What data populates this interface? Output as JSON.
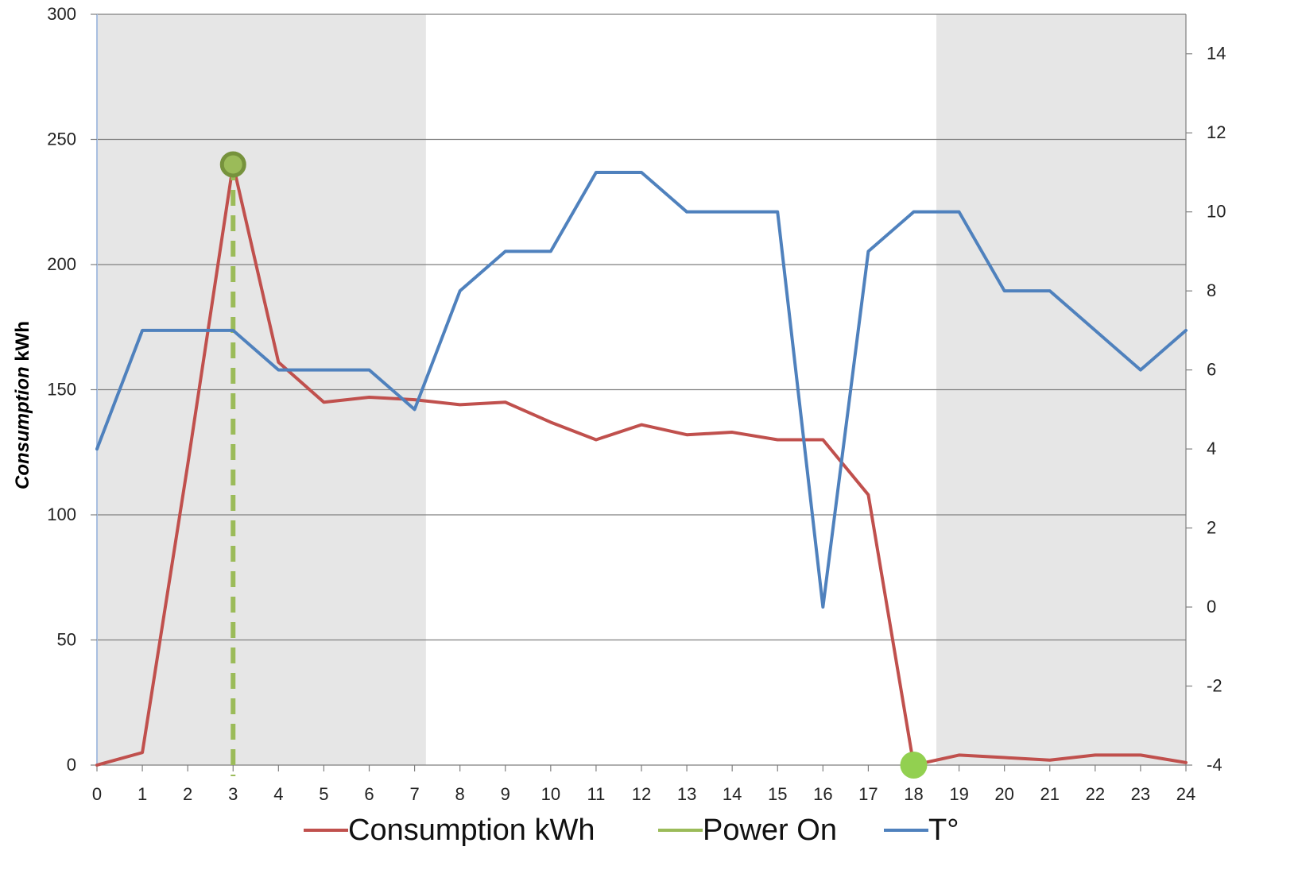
{
  "chart_data": {
    "type": "line",
    "ylabel_italic": "Consumption",
    "ylabel_rest": " kWh",
    "x": [
      0,
      1,
      2,
      3,
      4,
      5,
      6,
      7,
      8,
      9,
      10,
      11,
      12,
      13,
      14,
      15,
      16,
      17,
      18,
      19,
      20,
      21,
      22,
      23,
      24
    ],
    "xlim": [
      0,
      24
    ],
    "ylim": [
      0,
      300
    ],
    "y2lim": [
      -4,
      15
    ],
    "y_ticks": [
      0,
      50,
      100,
      150,
      200,
      250,
      300
    ],
    "y2_ticks": [
      -4,
      -2,
      0,
      2,
      4,
      6,
      8,
      10,
      12,
      14
    ],
    "grid": "horizontal",
    "legend_position": "bottom",
    "shaded_ranges": [
      [
        0,
        7.25
      ],
      [
        18.5,
        24
      ]
    ],
    "series": [
      {
        "name": "Consumption kWh",
        "axis": "left",
        "color": "#c0504d",
        "values": [
          0,
          5,
          120,
          240,
          161,
          145,
          147,
          146,
          144,
          145,
          137,
          130,
          136,
          132,
          133,
          130,
          130,
          108,
          0,
          4,
          3,
          2,
          4,
          4,
          1
        ]
      },
      {
        "name": "Power On",
        "axis": "left",
        "color": "#9bbb59",
        "dashed_line": {
          "x": 3,
          "from": 240,
          "to": 0
        },
        "markers": [
          {
            "x": 3,
            "y": 240,
            "style": "ring"
          },
          {
            "x": 18,
            "y": 0,
            "style": "filled"
          }
        ]
      },
      {
        "name": "T°",
        "axis": "right",
        "color": "#4f81bd",
        "values": [
          4,
          7,
          7,
          7,
          6,
          6,
          6,
          5,
          8,
          9,
          9,
          11,
          11,
          10,
          10,
          10,
          0,
          9,
          10,
          10,
          8,
          8,
          7,
          6,
          7
        ]
      }
    ]
  }
}
